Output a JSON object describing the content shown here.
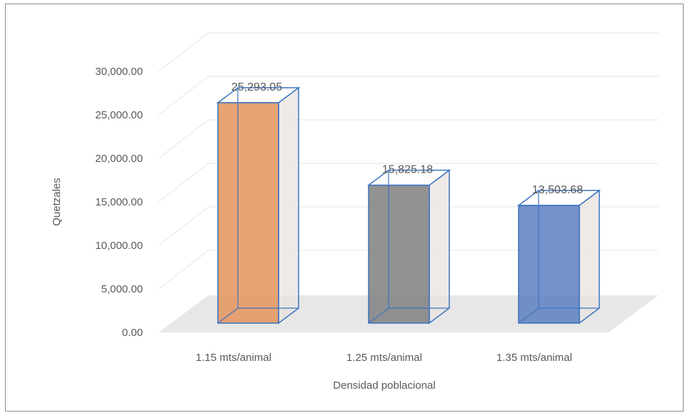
{
  "chart_data": {
    "type": "bar",
    "title": "",
    "xlabel": "Densidad poblacional",
    "ylabel": "Quetzales",
    "categories": [
      "1.15 mts/animal",
      "1.25 mts/animal",
      "1.35 mts/animal"
    ],
    "values": [
      25293.05,
      15825.18,
      13503.68
    ],
    "data_labels": [
      "25,293.05",
      "15,825.18",
      "13,503.68"
    ],
    "ylim": [
      0,
      30000
    ],
    "yticks": [
      0,
      5000,
      10000,
      15000,
      20000,
      25000,
      30000
    ],
    "ytick_labels": [
      "0.00",
      "5,000.00",
      "10,000.00",
      "15,000.00",
      "20,000.00",
      "25,000.00",
      "30,000.00"
    ],
    "grid": true,
    "legend": "none",
    "three_d": true,
    "colors": {
      "bars": [
        "#e3935c",
        "#7f7f7f",
        "#5b7fc0"
      ],
      "bar_outline": "#3c74c0",
      "gridline": "#e6e6e6",
      "floor": "#e7e7e7",
      "text": "#595959"
    }
  }
}
